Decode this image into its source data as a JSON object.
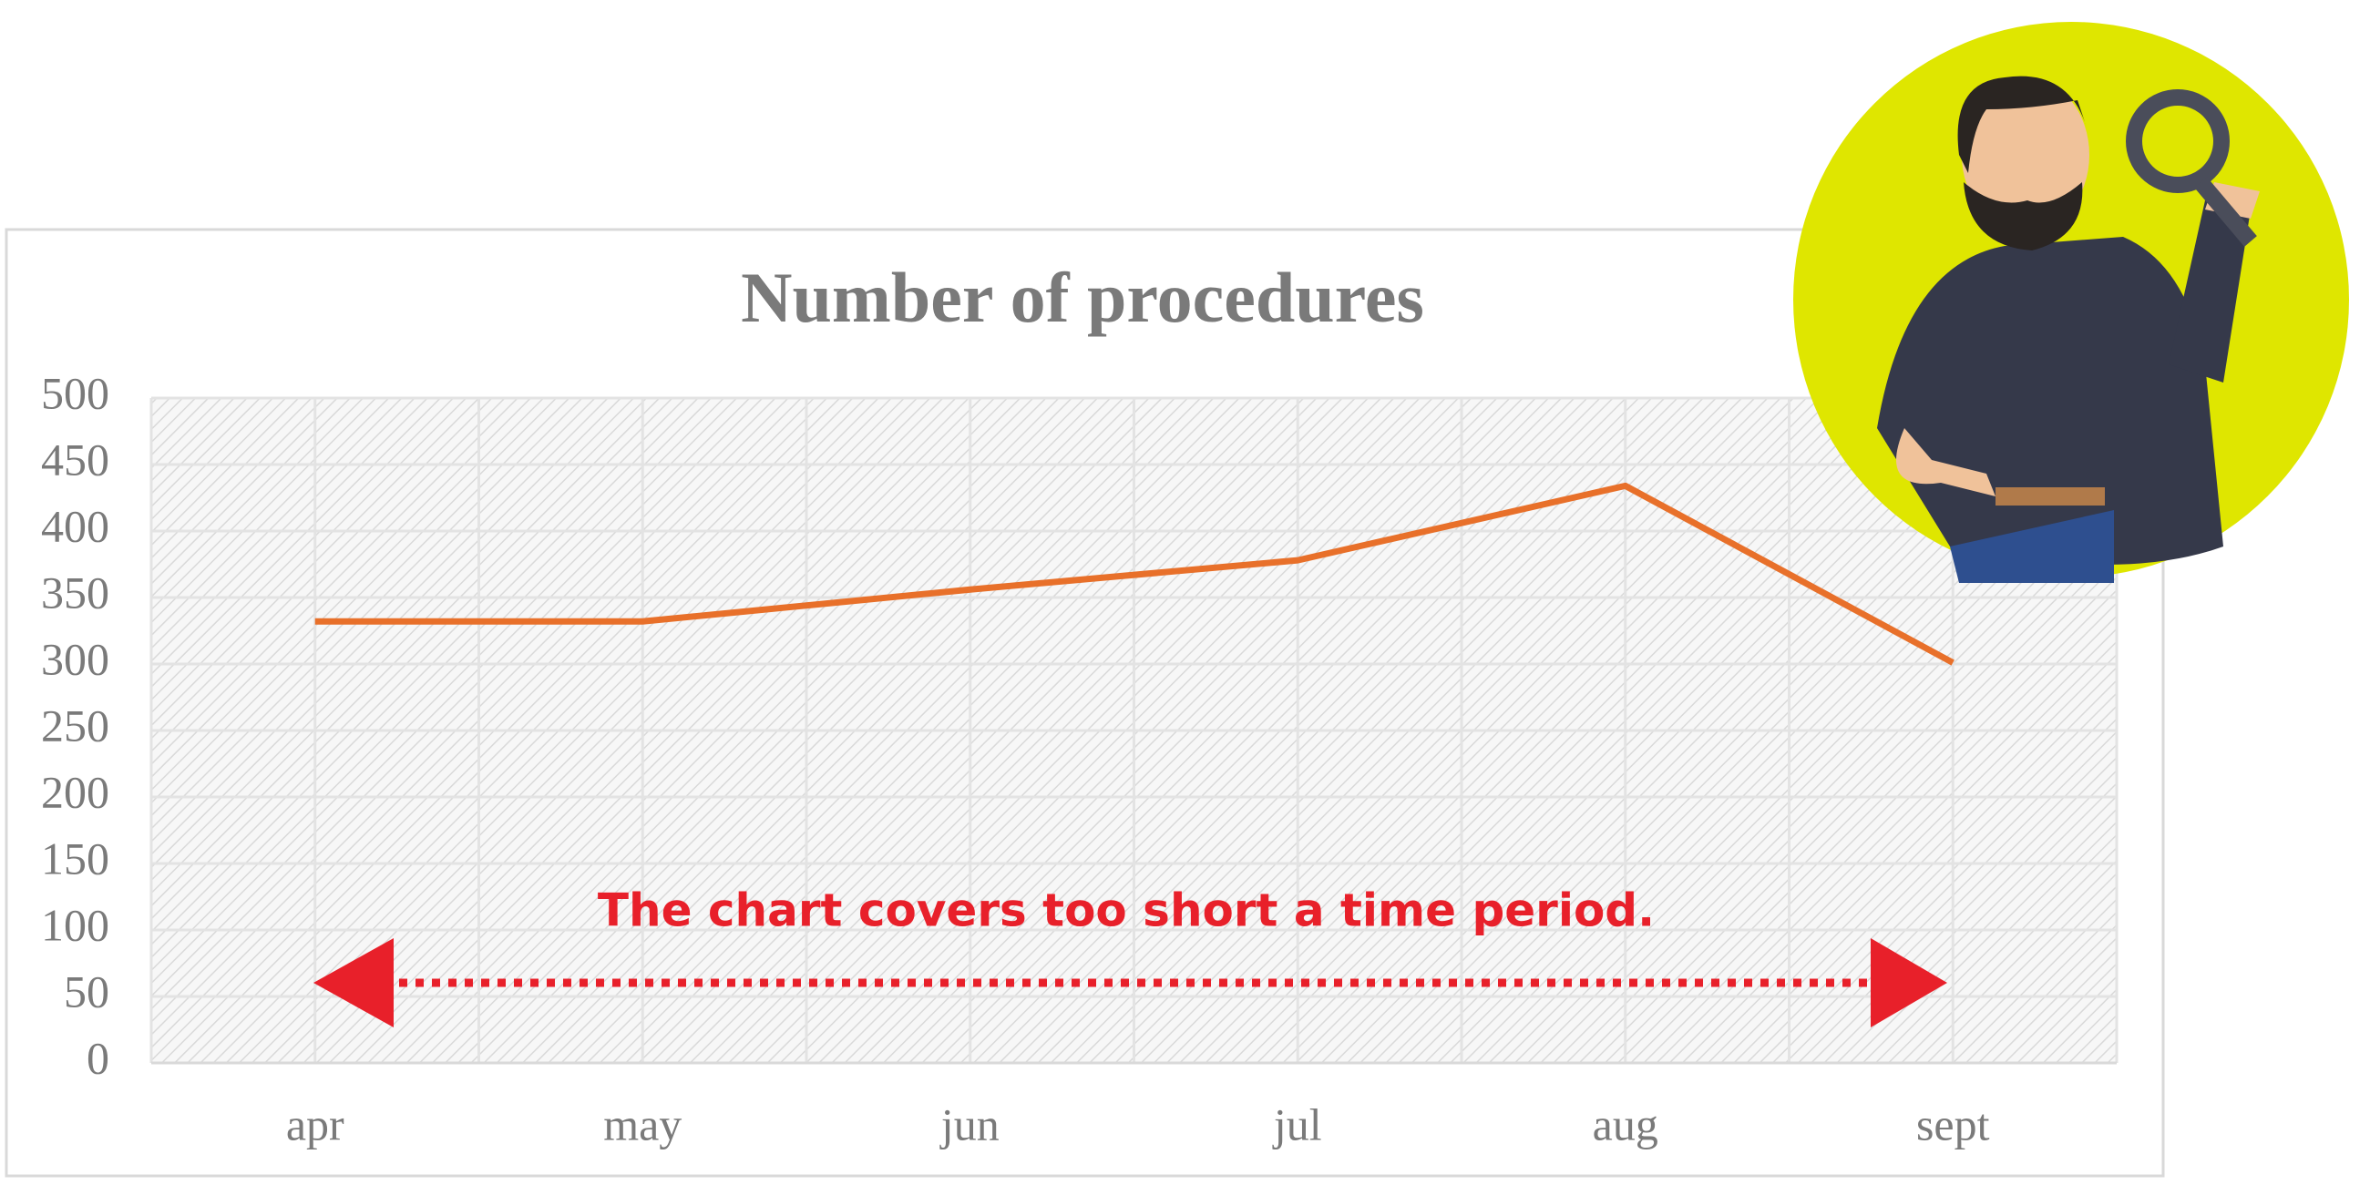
{
  "chart_data": {
    "type": "line",
    "title": "Number of procedures",
    "categories": [
      "apr",
      "may",
      "jun",
      "jul",
      "aug",
      "sept"
    ],
    "values": [
      332,
      332,
      356,
      378,
      434,
      301
    ],
    "color": "#e8702a",
    "ylim": [
      0,
      500
    ],
    "yticks": [
      0,
      50,
      100,
      150,
      200,
      250,
      300,
      350,
      400,
      450,
      500
    ],
    "grid": true,
    "annotation": "The chart covers too short a time period."
  }
}
